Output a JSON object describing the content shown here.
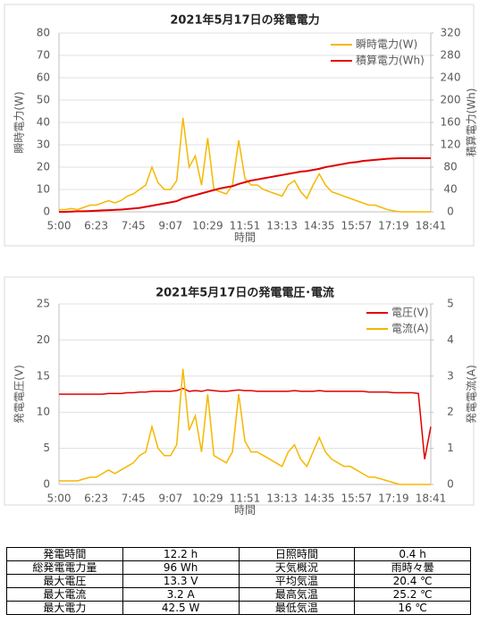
{
  "chart_data": [
    {
      "type": "line",
      "title": "2021年5月17日の発電電力",
      "xlabel": "時間",
      "ylabel": "瞬時電力(W)",
      "y2label": "積算電力(Wh)",
      "categories": [
        "5:00",
        null,
        null,
        null,
        null,
        null,
        "6:23",
        null,
        null,
        null,
        null,
        null,
        "7:45",
        null,
        null,
        null,
        null,
        null,
        "9:07",
        null,
        null,
        null,
        null,
        null,
        "10:29",
        null,
        null,
        null,
        null,
        null,
        "11:51",
        null,
        null,
        null,
        null,
        null,
        "13:13",
        null,
        null,
        null,
        null,
        null,
        "14:35",
        null,
        null,
        null,
        null,
        null,
        "15:57",
        null,
        null,
        null,
        null,
        null,
        "17:19",
        null,
        null,
        null,
        null,
        null,
        "18:41"
      ],
      "series": [
        {
          "name": "瞬時電力(W)",
          "color": "#f5b800",
          "values": [
            1,
            1,
            1.5,
            1,
            2,
            3,
            3,
            4,
            5,
            4,
            5,
            7,
            8,
            10,
            12,
            20,
            13,
            10,
            10,
            14,
            42,
            20,
            25,
            12,
            33,
            10,
            9,
            8,
            12,
            32,
            15,
            12,
            12,
            10,
            9,
            8,
            7,
            12,
            14,
            9,
            6,
            12,
            17,
            12,
            9,
            8,
            7,
            6,
            5,
            4,
            3,
            3,
            2,
            1,
            0.5,
            0,
            0,
            0,
            0,
            0,
            0
          ]
        },
        {
          "name": "積算電力(Wh)",
          "color": "#e00000",
          "axis": "y2",
          "values": [
            0,
            0,
            0.5,
            1,
            1,
            1.5,
            2,
            2.5,
            3,
            3.5,
            4,
            5,
            6,
            7,
            9,
            11,
            13,
            15,
            17,
            19,
            24,
            27,
            30,
            33,
            36,
            39,
            42,
            44,
            46,
            50,
            53,
            56,
            58,
            60,
            62,
            64,
            66,
            68,
            70,
            72,
            73,
            75,
            77,
            80,
            82,
            84,
            86,
            88,
            89,
            91,
            92,
            93,
            94,
            95,
            95.5,
            96,
            96,
            96,
            96,
            96,
            96
          ]
        }
      ],
      "ylim": [
        0,
        80
      ],
      "yticks": [
        0,
        10,
        20,
        30,
        40,
        50,
        60,
        70,
        80
      ],
      "y2lim": [
        0,
        320
      ],
      "y2ticks": [
        0,
        40,
        80,
        120,
        160,
        200,
        240,
        280,
        320
      ],
      "grid": true,
      "legend": "upper right"
    },
    {
      "type": "line",
      "title": "2021年5月17日の発電電圧･電流",
      "xlabel": "時間",
      "ylabel": "発電電圧(V)",
      "y2label": "発電電流(A)",
      "categories": [
        "5:00",
        null,
        null,
        null,
        null,
        null,
        "6:23",
        null,
        null,
        null,
        null,
        null,
        "7:45",
        null,
        null,
        null,
        null,
        null,
        "9:07",
        null,
        null,
        null,
        null,
        null,
        "10:29",
        null,
        null,
        null,
        null,
        null,
        "11:51",
        null,
        null,
        null,
        null,
        null,
        "13:13",
        null,
        null,
        null,
        null,
        null,
        "14:35",
        null,
        null,
        null,
        null,
        null,
        "15:57",
        null,
        null,
        null,
        null,
        null,
        "17:19",
        null,
        null,
        null,
        null,
        null,
        "18:41"
      ],
      "series": [
        {
          "name": "電圧(V)",
          "color": "#e00000",
          "values": [
            12.5,
            12.5,
            12.5,
            12.5,
            12.5,
            12.5,
            12.5,
            12.5,
            12.6,
            12.6,
            12.6,
            12.7,
            12.7,
            12.8,
            12.8,
            12.9,
            12.9,
            12.9,
            12.9,
            13,
            13.3,
            12.9,
            13,
            12.9,
            13.1,
            13,
            12.9,
            12.9,
            13,
            13.1,
            13,
            13,
            12.9,
            12.9,
            12.9,
            12.9,
            12.9,
            12.9,
            13,
            12.9,
            12.9,
            12.9,
            13,
            12.9,
            12.9,
            12.9,
            12.9,
            12.9,
            12.9,
            12.9,
            12.8,
            12.8,
            12.8,
            12.8,
            12.7,
            12.7,
            12.7,
            12.7,
            12.6,
            3.5,
            8
          ]
        },
        {
          "name": "電流(A)",
          "color": "#f5b800",
          "axis": "y2",
          "values": [
            0.1,
            0.1,
            0.1,
            0.1,
            0.15,
            0.2,
            0.2,
            0.3,
            0.4,
            0.3,
            0.4,
            0.5,
            0.6,
            0.8,
            0.9,
            1.6,
            1,
            0.8,
            0.8,
            1.1,
            3.2,
            1.5,
            1.9,
            0.9,
            2.5,
            0.8,
            0.7,
            0.6,
            0.9,
            2.5,
            1.2,
            0.9,
            0.9,
            0.8,
            0.7,
            0.6,
            0.5,
            0.9,
            1.1,
            0.7,
            0.5,
            0.9,
            1.3,
            0.9,
            0.7,
            0.6,
            0.5,
            0.5,
            0.4,
            0.3,
            0.2,
            0.2,
            0.15,
            0.1,
            0.05,
            0,
            0,
            0,
            0,
            0,
            0
          ]
        }
      ],
      "ylim": [
        0,
        25
      ],
      "yticks": [
        0,
        5,
        10,
        15,
        20,
        25
      ],
      "y2lim": [
        0,
        5
      ],
      "y2ticks": [
        0,
        1,
        2,
        3,
        4,
        5
      ],
      "grid": true,
      "legend": "upper right"
    }
  ],
  "table": {
    "rows": [
      [
        "発電時間",
        "12.2 h",
        "日照時間",
        "0.4 h"
      ],
      [
        "総発電電力量",
        "96 Wh",
        "天気概況",
        "雨時々曇"
      ],
      [
        "最大電圧",
        "13.3 V",
        "平均気温",
        "20.4 ℃"
      ],
      [
        "最大電流",
        "3.2 A",
        "最高気温",
        "25.2 ℃"
      ],
      [
        "最大電力",
        "42.5 W",
        "最低気温",
        "16 ℃"
      ]
    ]
  }
}
